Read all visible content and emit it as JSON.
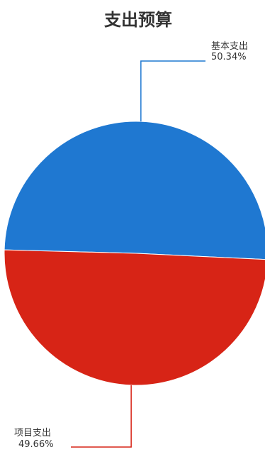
{
  "chart_data": {
    "type": "pie",
    "title": "支出预算",
    "slices": [
      {
        "label": "基本支出",
        "value": 50.34,
        "percent_label": "50.34%",
        "color": "#1f78d1"
      },
      {
        "label": "项目支出",
        "value": 49.66,
        "percent_label": "49.66%",
        "color": "#d72416"
      }
    ],
    "legend": "none",
    "labels": "outside-with-leader-lines"
  }
}
